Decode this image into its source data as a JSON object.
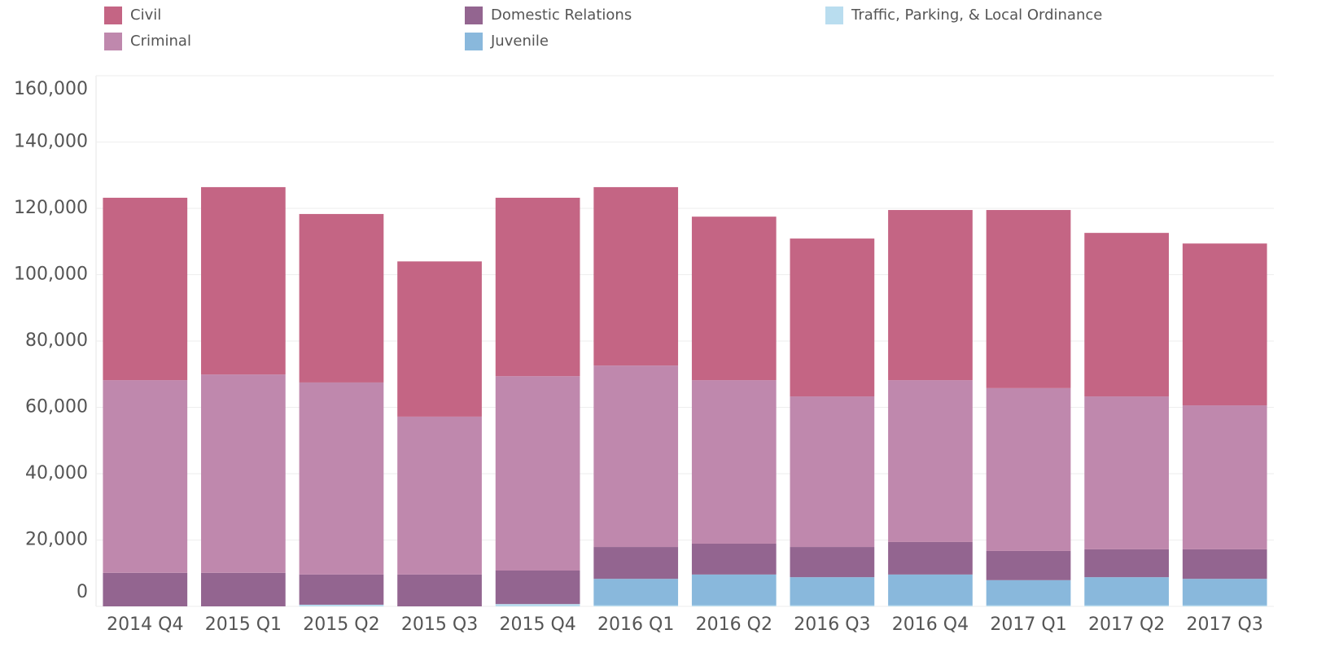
{
  "chart_data": {
    "type": "stacked_bar",
    "categories": [
      "2014 Q4",
      "2015 Q1",
      "2015 Q2",
      "2015 Q3",
      "2015 Q4",
      "2016 Q1",
      "2016 Q2",
      "2016 Q3",
      "2016 Q4",
      "2017 Q1",
      "2017 Q2",
      "2017 Q3"
    ],
    "series": [
      {
        "name": "Civil",
        "color": "#c46584",
        "values": [
          55000,
          56500,
          50800,
          46800,
          53800,
          53800,
          49300,
          47600,
          51300,
          53700,
          49300,
          48800
        ]
      },
      {
        "name": "Criminal",
        "color": "#bf88ad",
        "values": [
          58100,
          59800,
          57900,
          47600,
          58600,
          54700,
          49300,
          45400,
          48800,
          49100,
          46100,
          43400
        ]
      },
      {
        "name": "Domestic Relations",
        "color": "#936590",
        "values": [
          10100,
          10100,
          9100,
          9600,
          10100,
          9600,
          9300,
          9100,
          9800,
          8800,
          8400,
          8900
        ]
      },
      {
        "name": "Juvenile",
        "color": "#89b8dc",
        "values": [
          0,
          0,
          0,
          0,
          0,
          8000,
          9300,
          8500,
          9300,
          7600,
          8500,
          8000
        ]
      },
      {
        "name": "Traffic, Parking, & Local Ordinance",
        "color": "#b9ddef",
        "values": [
          0,
          0,
          500,
          0,
          700,
          300,
          300,
          300,
          300,
          300,
          300,
          300
        ]
      }
    ],
    "ylim": [
      0,
      160000
    ],
    "yticks": [
      0,
      {
        "value": 20000,
        "label": "20,000"
      },
      {
        "value": 40000,
        "label": "40,000"
      },
      {
        "value": 60000,
        "label": "60,000"
      },
      {
        "value": 80000,
        "label": "80,000"
      },
      {
        "value": 100000,
        "label": "100,000"
      },
      {
        "value": 120000,
        "label": "120,000"
      },
      {
        "value": 140000,
        "label": "140,000"
      },
      {
        "value": 160000,
        "label": "160,000"
      }
    ],
    "grid": true
  }
}
